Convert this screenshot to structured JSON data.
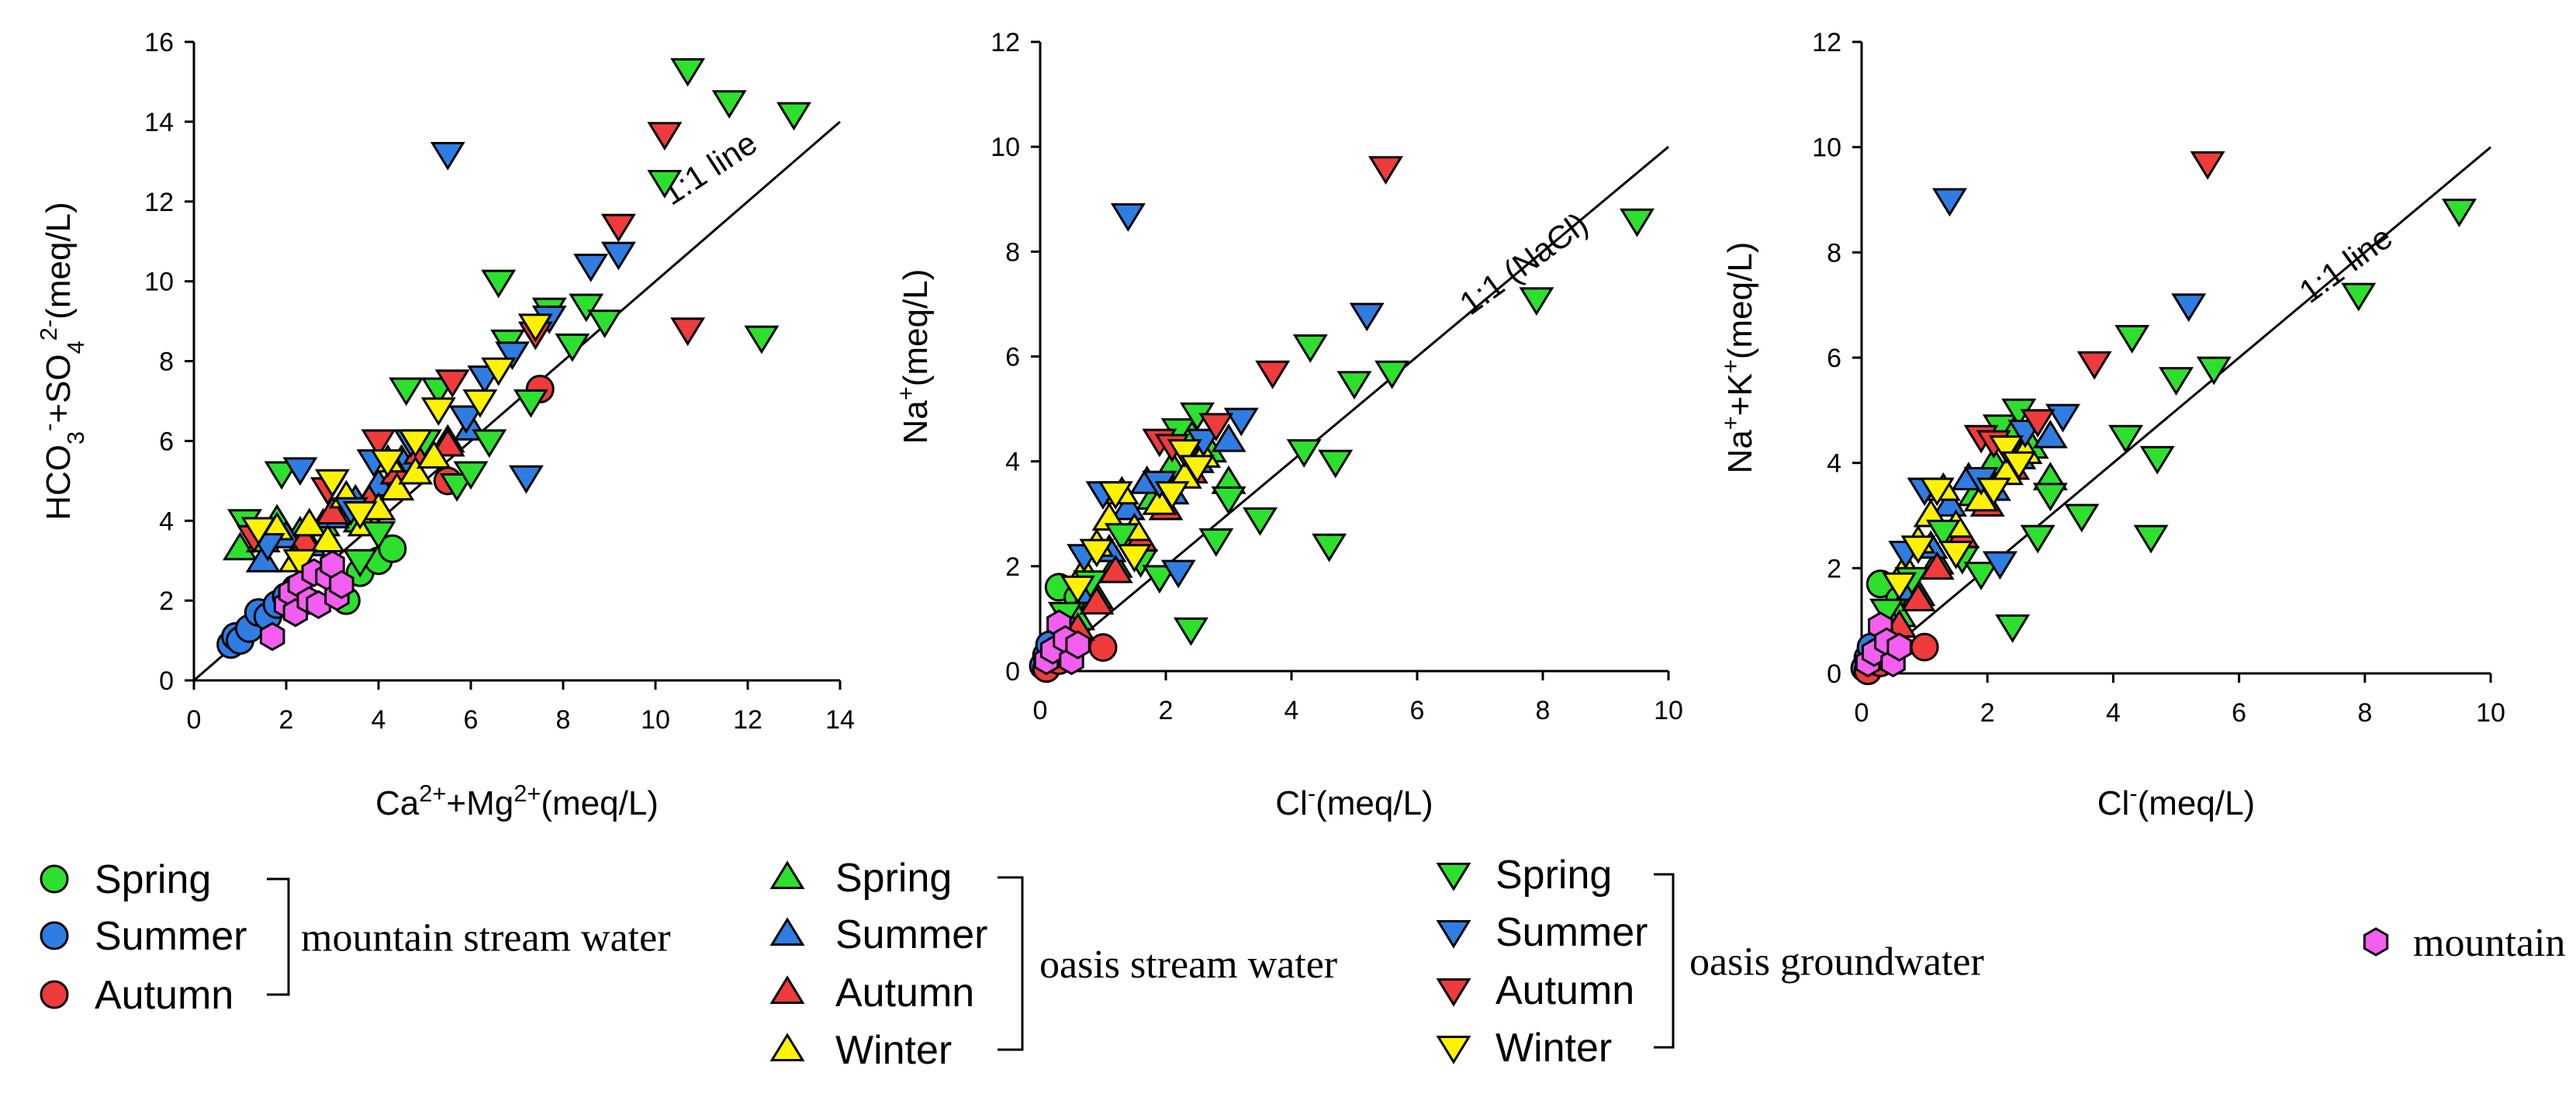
{
  "colors": {
    "Spring": "#2ee02e",
    "Summer": "#2f7de3",
    "Autumn": "#ef3b3b",
    "Winter": "#fff200",
    "mountain_groundwater": "#f45ef0",
    "axis": "#000000",
    "marker_edge": "#000000"
  },
  "legend": {
    "groups": [
      {
        "key": "mountain stream water",
        "label": "mountain stream water",
        "marker": "circle",
        "seasons": [
          "Spring",
          "Summer",
          "Autumn"
        ]
      },
      {
        "key": "oasis stream water",
        "label": "oasis stream water",
        "marker": "triangle-up",
        "seasons": [
          "Spring",
          "Summer",
          "Autumn",
          "Winter"
        ]
      },
      {
        "key": "oasis groundwater",
        "label": "oasis groundwater",
        "marker": "triangle-down",
        "seasons": [
          "Spring",
          "Summer",
          "Autumn",
          "Winter"
        ]
      },
      {
        "key": "mountain groundwater",
        "label": "mountain groundwater",
        "marker": "hexagon",
        "seasons": []
      }
    ]
  },
  "chart_data": [
    {
      "type": "scatter",
      "title": "",
      "xlabel": "Ca2+ + Mg2+ (meq/L)",
      "ylabel": "HCO3- + SO42- (meq/L)",
      "xlim": [
        0,
        14
      ],
      "ylim": [
        0,
        16
      ],
      "xticks": [
        0,
        2,
        4,
        6,
        8,
        10,
        12,
        14
      ],
      "yticks": [
        0,
        2,
        4,
        6,
        8,
        10,
        12,
        14,
        16
      ],
      "reference_line": {
        "from": [
          0,
          0
        ],
        "to": [
          14,
          14
        ],
        "label": "1:1 line",
        "label_at": [
          11.3,
          12.6
        ]
      },
      "series": [
        {
          "group": "mountain stream water",
          "season": "Spring",
          "x": [
            3.3,
            3.6,
            4.0,
            4.3
          ],
          "y": [
            2.0,
            2.7,
            3.0,
            3.3
          ]
        },
        {
          "group": "mountain stream water",
          "season": "Summer",
          "x": [
            0.8,
            0.9,
            1.0,
            1.2,
            1.4,
            1.6,
            1.8,
            2.0,
            2.2
          ],
          "y": [
            0.9,
            1.1,
            1.0,
            1.3,
            1.7,
            1.6,
            1.9,
            2.1,
            2.3
          ]
        },
        {
          "group": "mountain stream water",
          "season": "Autumn",
          "x": [
            5.5,
            7.5
          ],
          "y": [
            5.0,
            7.3
          ]
        },
        {
          "group": "oasis stream water",
          "season": "Spring",
          "x": [
            1.0,
            1.5,
            1.8,
            2.3,
            2.8,
            3.3,
            3.6,
            4.0,
            4.3,
            4.5,
            4.8,
            5.0
          ],
          "y": [
            3.3,
            3.5,
            4.0,
            3.7,
            3.9,
            4.4,
            4.0,
            4.8,
            5.0,
            5.3,
            5.2,
            5.8
          ]
        },
        {
          "group": "oasis stream water",
          "season": "Summer",
          "x": [
            1.5,
            2.0,
            2.5,
            3.0,
            3.5,
            4.0,
            4.5,
            5.0,
            5.5,
            6.0
          ],
          "y": [
            3.0,
            3.6,
            3.4,
            4.1,
            4.5,
            4.9,
            5.5,
            5.8,
            6.0,
            6.3
          ]
        },
        {
          "group": "oasis stream water",
          "season": "Autumn",
          "x": [
            2.4,
            3.0,
            3.8,
            4.4,
            4.9,
            5.5
          ],
          "y": [
            3.5,
            4.2,
            4.5,
            5.2,
            5.7,
            5.9
          ]
        },
        {
          "group": "oasis stream water",
          "season": "Winter",
          "x": [
            1.8,
            2.2,
            2.5,
            2.9,
            3.3,
            3.7,
            4.0,
            4.2,
            4.4,
            4.8,
            5.2
          ],
          "y": [
            3.8,
            3.0,
            3.9,
            3.5,
            4.6,
            3.9,
            4.3,
            5.5,
            4.8,
            5.2,
            5.6
          ]
        },
        {
          "group": "oasis groundwater",
          "season": "Spring",
          "x": [
            1.1,
            1.9,
            3.6,
            4.0,
            4.6,
            5.0,
            5.3,
            5.7,
            6.0,
            6.4,
            6.6,
            6.8,
            7.3,
            7.7,
            8.2,
            8.5,
            8.9,
            10.2,
            10.7,
            11.6,
            12.3,
            13.0
          ],
          "y": [
            4.0,
            5.2,
            3.0,
            3.7,
            7.3,
            6.0,
            7.3,
            4.9,
            5.2,
            6.0,
            10.0,
            8.5,
            7.0,
            9.3,
            8.4,
            9.4,
            9.0,
            12.5,
            15.3,
            14.5,
            8.6,
            14.2
          ]
        },
        {
          "group": "oasis groundwater",
          "season": "Summer",
          "x": [
            1.6,
            2.3,
            3.4,
            3.9,
            4.7,
            5.5,
            5.9,
            6.3,
            6.9,
            7.2,
            7.7,
            8.6,
            9.2
          ],
          "y": [
            3.4,
            5.3,
            4.3,
            5.5,
            6.0,
            13.2,
            6.6,
            7.6,
            8.2,
            5.1,
            9.1,
            10.4,
            10.7
          ]
        },
        {
          "group": "oasis groundwater",
          "season": "Autumn",
          "x": [
            1.3,
            2.9,
            4.0,
            5.6,
            7.4,
            9.2,
            10.2,
            10.7
          ],
          "y": [
            3.6,
            4.8,
            6.0,
            7.5,
            8.7,
            11.4,
            13.7,
            8.8
          ]
        },
        {
          "group": "oasis groundwater",
          "season": "Winter",
          "x": [
            1.4,
            2.3,
            3.0,
            3.6,
            4.2,
            4.8,
            5.3,
            6.2,
            6.6,
            7.4
          ],
          "y": [
            3.8,
            3.0,
            5.0,
            4.2,
            5.5,
            6.0,
            6.8,
            7.0,
            7.8,
            8.9
          ]
        },
        {
          "group": "mountain groundwater",
          "season": "",
          "x": [
            1.7,
            2.0,
            2.1,
            2.2,
            2.3,
            2.5,
            2.6,
            2.7,
            2.9,
            3.0,
            3.1,
            3.2
          ],
          "y": [
            1.1,
            1.9,
            2.2,
            1.7,
            2.4,
            2.0,
            2.7,
            1.9,
            2.6,
            2.9,
            2.1,
            2.4
          ]
        }
      ]
    },
    {
      "type": "scatter",
      "title": "",
      "xlabel": "Cl- (meq/L)",
      "ylabel": "Na+ (meq/L)",
      "xlim": [
        0,
        10
      ],
      "ylim": [
        0,
        12
      ],
      "xticks": [
        0,
        2,
        4,
        6,
        8,
        10
      ],
      "yticks": [
        0,
        2,
        4,
        6,
        8,
        10,
        12
      ],
      "reference_line": {
        "from": [
          0,
          0
        ],
        "to": [
          10,
          10
        ],
        "label": "1:1 (NaCl)",
        "label_at": [
          7.8,
          7.6
        ]
      },
      "series": [
        {
          "group": "mountain stream water",
          "season": "Spring",
          "x": [
            0.3,
            0.4,
            0.6
          ],
          "y": [
            1.6,
            0.6,
            1.4
          ]
        },
        {
          "group": "mountain stream water",
          "season": "Summer",
          "x": [
            0.05,
            0.1,
            0.15,
            0.2,
            0.25
          ],
          "y": [
            0.1,
            0.3,
            0.5,
            0.2,
            0.4
          ]
        },
        {
          "group": "mountain stream water",
          "season": "Autumn",
          "x": [
            0.1,
            0.3,
            1.0
          ],
          "y": [
            0.05,
            0.2,
            0.45
          ]
        },
        {
          "group": "oasis stream water",
          "season": "Spring",
          "x": [
            0.6,
            0.9,
            1.2,
            1.5,
            1.8,
            2.1,
            2.4,
            2.7,
            3.0
          ],
          "y": [
            1.0,
            1.4,
            2.0,
            2.6,
            3.3,
            3.9,
            4.5,
            4.2,
            3.6
          ]
        },
        {
          "group": "oasis stream water",
          "season": "Summer",
          "x": [
            0.5,
            0.8,
            1.1,
            1.4,
            1.7,
            2.1,
            2.5,
            3.0
          ],
          "y": [
            0.8,
            1.5,
            2.3,
            3.1,
            3.6,
            3.4,
            4.0,
            4.4
          ]
        },
        {
          "group": "oasis stream water",
          "season": "Autumn",
          "x": [
            0.6,
            0.9,
            1.2,
            1.6,
            2.0,
            2.4
          ],
          "y": [
            0.8,
            1.3,
            1.9,
            2.5,
            3.1,
            3.8
          ]
        },
        {
          "group": "oasis stream water",
          "season": "Winter",
          "x": [
            0.7,
            0.9,
            1.1,
            1.3,
            1.5,
            1.9,
            2.3,
            2.6
          ],
          "y": [
            1.9,
            2.4,
            2.9,
            3.4,
            2.7,
            3.2,
            3.7,
            4.1
          ]
        },
        {
          "group": "oasis groundwater",
          "season": "Spring",
          "x": [
            0.4,
            0.8,
            1.3,
            1.6,
            1.9,
            2.2,
            2.4,
            2.5,
            2.8,
            3.0,
            3.5,
            4.2,
            4.3,
            4.6,
            4.7,
            5.0,
            5.6,
            7.9,
            9.5
          ],
          "y": [
            1.1,
            1.7,
            2.6,
            2.1,
            1.8,
            4.6,
            0.8,
            4.9,
            2.5,
            3.3,
            2.9,
            4.2,
            6.2,
            2.4,
            4.0,
            5.5,
            5.7,
            7.1,
            8.6
          ]
        },
        {
          "group": "oasis groundwater",
          "season": "Summer",
          "x": [
            0.7,
            1.0,
            1.4,
            1.9,
            2.2,
            2.6,
            3.2,
            5.2
          ],
          "y": [
            2.2,
            3.4,
            8.7,
            3.6,
            1.9,
            4.4,
            4.8,
            6.8
          ]
        },
        {
          "group": "oasis groundwater",
          "season": "Autumn",
          "x": [
            1.9,
            2.1,
            2.8,
            3.7,
            5.5
          ],
          "y": [
            4.4,
            4.3,
            4.7,
            5.7,
            9.6
          ]
        },
        {
          "group": "oasis groundwater",
          "season": "Winter",
          "x": [
            0.6,
            0.9,
            1.2,
            1.5,
            2.1,
            2.3,
            2.5
          ],
          "y": [
            1.6,
            2.3,
            3.4,
            2.2,
            3.4,
            4.2,
            3.9
          ]
        },
        {
          "group": "mountain groundwater",
          "season": "",
          "x": [
            0.1,
            0.2,
            0.3,
            0.4,
            0.5,
            0.6
          ],
          "y": [
            0.2,
            0.4,
            0.9,
            0.6,
            0.2,
            0.5
          ]
        }
      ]
    },
    {
      "type": "scatter",
      "title": "",
      "xlabel": "Cl- (meq/L)",
      "ylabel": "Na+ + K+ (meq/L)",
      "xlim": [
        0,
        10
      ],
      "ylim": [
        0,
        12
      ],
      "xticks": [
        0,
        2,
        4,
        6,
        8,
        10
      ],
      "yticks": [
        0,
        2,
        4,
        6,
        8,
        10,
        12
      ],
      "reference_line": {
        "from": [
          0,
          0
        ],
        "to": [
          10,
          10
        ],
        "label": "1:1 line",
        "label_at": [
          7.8,
          7.6
        ]
      },
      "series": [
        {
          "group": "mountain stream water",
          "season": "Spring",
          "x": [
            0.3,
            0.4,
            0.6
          ],
          "y": [
            1.7,
            0.6,
            1.4
          ]
        },
        {
          "group": "mountain stream water",
          "season": "Summer",
          "x": [
            0.05,
            0.1,
            0.15,
            0.2,
            0.25
          ],
          "y": [
            0.1,
            0.3,
            0.5,
            0.2,
            0.4
          ]
        },
        {
          "group": "mountain stream water",
          "season": "Autumn",
          "x": [
            0.1,
            0.3,
            1.0
          ],
          "y": [
            0.05,
            0.2,
            0.5
          ]
        },
        {
          "group": "oasis stream water",
          "season": "Spring",
          "x": [
            0.6,
            0.9,
            1.2,
            1.5,
            1.8,
            2.1,
            2.4,
            2.7,
            3.0
          ],
          "y": [
            1.1,
            1.5,
            2.1,
            2.7,
            3.4,
            4.0,
            4.6,
            4.3,
            3.7
          ]
        },
        {
          "group": "oasis stream water",
          "season": "Summer",
          "x": [
            0.5,
            0.8,
            1.1,
            1.4,
            1.7,
            2.1,
            2.5,
            3.0
          ],
          "y": [
            0.9,
            1.6,
            2.4,
            3.2,
            3.7,
            3.5,
            4.1,
            4.5
          ]
        },
        {
          "group": "oasis stream water",
          "season": "Autumn",
          "x": [
            0.6,
            0.9,
            1.2,
            1.6,
            2.0,
            2.4
          ],
          "y": [
            0.9,
            1.4,
            2.0,
            2.6,
            3.2,
            3.9
          ]
        },
        {
          "group": "oasis stream water",
          "season": "Winter",
          "x": [
            0.7,
            0.9,
            1.1,
            1.3,
            1.5,
            1.9,
            2.3,
            2.6
          ],
          "y": [
            2.0,
            2.5,
            3.0,
            3.5,
            2.8,
            3.3,
            3.8,
            4.2
          ]
        },
        {
          "group": "oasis groundwater",
          "season": "Spring",
          "x": [
            0.4,
            0.8,
            1.3,
            1.6,
            1.9,
            2.2,
            2.4,
            2.5,
            2.8,
            3.0,
            3.5,
            4.2,
            4.3,
            4.6,
            4.7,
            5.0,
            5.6,
            7.9,
            9.5
          ],
          "y": [
            1.2,
            1.8,
            2.7,
            2.2,
            1.9,
            4.7,
            0.9,
            5.0,
            2.6,
            3.4,
            3.0,
            4.5,
            6.4,
            2.6,
            4.1,
            5.6,
            5.8,
            7.2,
            8.8
          ]
        },
        {
          "group": "oasis groundwater",
          "season": "Summer",
          "x": [
            0.7,
            1.0,
            1.4,
            1.9,
            2.2,
            2.6,
            3.2,
            5.2
          ],
          "y": [
            2.3,
            3.5,
            9.0,
            3.7,
            2.1,
            4.6,
            4.9,
            7.0
          ]
        },
        {
          "group": "oasis groundwater",
          "season": "Autumn",
          "x": [
            1.9,
            2.1,
            2.8,
            3.7,
            5.5
          ],
          "y": [
            4.5,
            4.4,
            4.8,
            5.9,
            9.7
          ]
        },
        {
          "group": "oasis groundwater",
          "season": "Winter",
          "x": [
            0.6,
            0.9,
            1.2,
            1.5,
            2.1,
            2.3,
            2.5
          ],
          "y": [
            1.7,
            2.4,
            3.5,
            2.3,
            3.5,
            4.3,
            4.0
          ]
        },
        {
          "group": "mountain groundwater",
          "season": "",
          "x": [
            0.1,
            0.2,
            0.3,
            0.4,
            0.5,
            0.6
          ],
          "y": [
            0.2,
            0.4,
            0.9,
            0.6,
            0.2,
            0.5
          ]
        }
      ]
    }
  ]
}
